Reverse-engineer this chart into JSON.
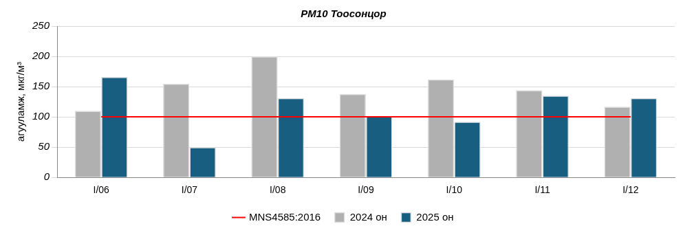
{
  "chart_data": {
    "type": "bar",
    "title": "PM10 Тоосонцор",
    "ylabel": "агууламж, мкг/м³",
    "categories": [
      "I/06",
      "I/07",
      "I/08",
      "I/09",
      "I/10",
      "I/11",
      "I/12"
    ],
    "series": [
      {
        "name": "2024 он",
        "color": "#b0b0b0",
        "values": [
          110,
          155,
          200,
          138,
          162,
          144,
          117
        ]
      },
      {
        "name": "2025 он",
        "color": "#175e80",
        "values": [
          166,
          50,
          131,
          101,
          92,
          135,
          131
        ]
      },
      {
        "name": "MNS4585:2016",
        "type": "line",
        "color": "#ff0000",
        "values": [
          100,
          100,
          100,
          100,
          100,
          100,
          100
        ]
      }
    ],
    "ylim": [
      0,
      250
    ],
    "yticks": [
      0,
      50,
      100,
      150,
      200,
      250
    ],
    "grid": "y",
    "legend": "bottom",
    "marker": "none",
    "line_style": "solid"
  }
}
